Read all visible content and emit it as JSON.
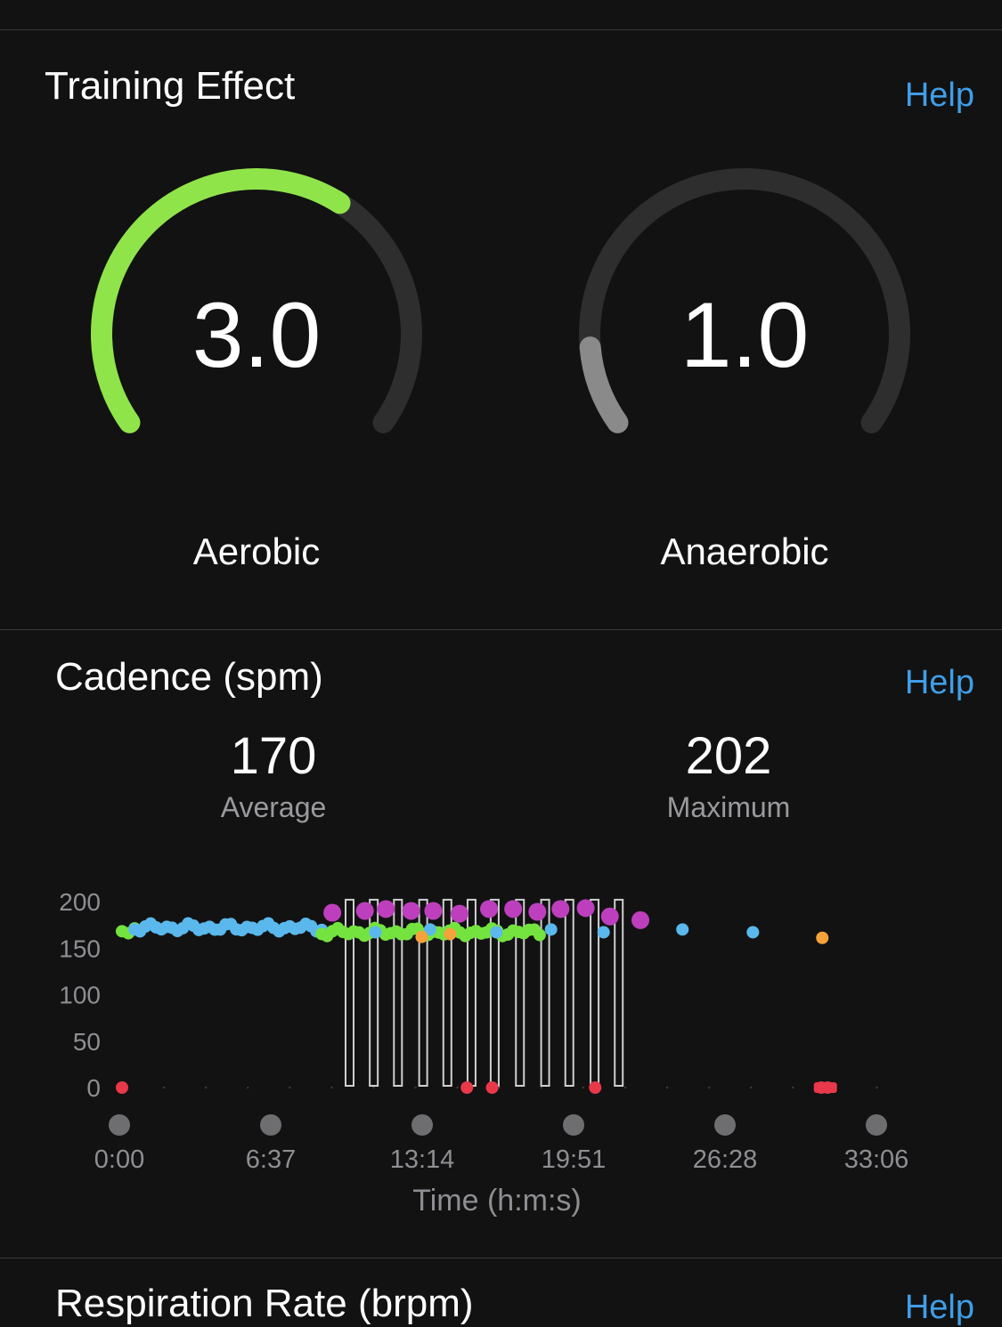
{
  "training_effect": {
    "title": "Training Effect",
    "help_label": "Help",
    "aerobic": {
      "value": "3.0",
      "label": "Aerobic",
      "fraction": 0.63,
      "color": "#8fe44a"
    },
    "anaerobic": {
      "value": "1.0",
      "label": "Anaerobic",
      "fraction": 0.12,
      "color": "#8a8a8a"
    },
    "track_color": "#2e2e2e"
  },
  "cadence": {
    "title": "Cadence (spm)",
    "help_label": "Help",
    "average": {
      "value": "170",
      "label": "Average"
    },
    "maximum": {
      "value": "202",
      "label": "Maximum"
    }
  },
  "respiration": {
    "title": "Respiration Rate (brpm)",
    "help_label": "Help"
  },
  "chart_data": {
    "type": "scatter",
    "xlabel": "Time (h:m:s)",
    "ylabel": "",
    "y_ticks": [
      "200",
      "150",
      "100",
      "50",
      "0"
    ],
    "x_ticks": [
      "0:00",
      "6:37",
      "13:14",
      "19:51",
      "26:28",
      "33:06"
    ],
    "ylim": [
      0,
      200
    ],
    "xlim_seconds": [
      0,
      1986
    ],
    "colors": {
      "green": "#74e33f",
      "blue": "#5ab8ec",
      "purple": "#bd3fbd",
      "orange": "#f5a23a",
      "red": "#e8384a",
      "interval_lines": "#cfcfcf"
    },
    "segments": [
      {
        "color": "green",
        "x_start": 0,
        "x_end": 60,
        "y": 170
      },
      {
        "color": "blue",
        "x_start": 60,
        "x_end": 950,
        "y": 172
      },
      {
        "color": "green",
        "x_start": 950,
        "x_end": 1986,
        "y": 167
      }
    ],
    "purple_points": [
      {
        "x": 1000,
        "y": 188
      },
      {
        "x": 1155,
        "y": 190
      },
      {
        "x": 1255,
        "y": 192
      },
      {
        "x": 1375,
        "y": 190
      },
      {
        "x": 1480,
        "y": 190
      },
      {
        "x": 1605,
        "y": 187
      },
      {
        "x": 1745,
        "y": 192
      },
      {
        "x": 1860,
        "y": 192
      },
      {
        "x": 1975,
        "y": 189
      },
      {
        "x": 2085,
        "y": 192
      },
      {
        "x": 2205,
        "y": 193
      },
      {
        "x": 2320,
        "y": 184
      },
      {
        "x": 2465,
        "y": 180
      }
    ],
    "orange_points": [
      {
        "x": 1425,
        "y": 162
      },
      {
        "x": 1560,
        "y": 165
      },
      {
        "x": 3330,
        "y": 161
      }
    ],
    "red_points": [
      {
        "x": 0,
        "y": 0
      },
      {
        "x": 1640,
        "y": 0
      },
      {
        "x": 1760,
        "y": 0
      },
      {
        "x": 2250,
        "y": 0
      },
      {
        "x": 3325,
        "y": 0
      },
      {
        "x": 3355,
        "y": 0
      }
    ],
    "interval_lines_x": [
      1080,
      1195,
      1310,
      1430,
      1545,
      1660,
      1770,
      1890,
      2010,
      2125,
      2245,
      2360
    ]
  }
}
